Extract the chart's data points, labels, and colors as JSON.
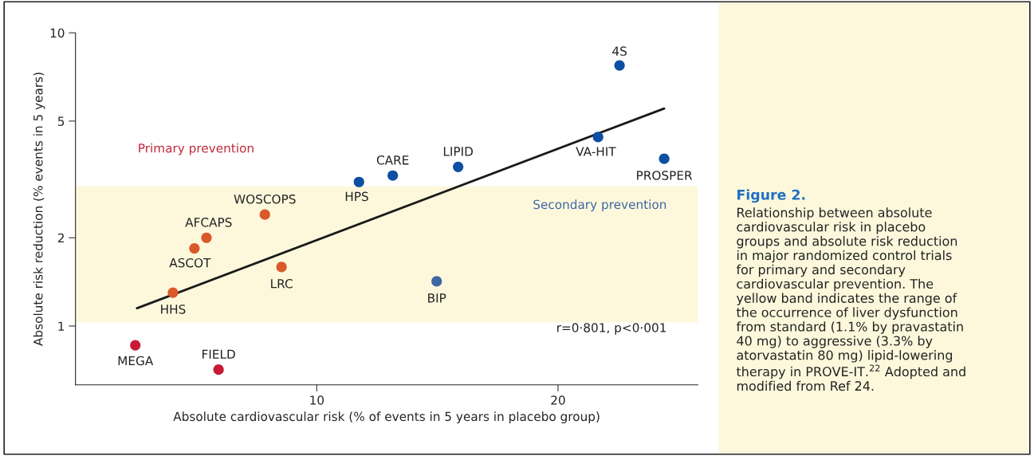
{
  "chart_data": {
    "type": "scatter",
    "xlabel": "Absolute cardiovascular risk (% of events in 5 years in placebo group)",
    "ylabel": "Absolute risk reduction (% events in 5 years)",
    "log": "y",
    "xlim": [
      0,
      25.8
    ],
    "ylim": [
      0.63,
      10
    ],
    "xticks": [
      10,
      20
    ],
    "yticks": [
      1,
      2,
      5,
      10
    ],
    "grid": false,
    "legend": false,
    "series": [
      {
        "marker": "circle",
        "x": [
          22.55,
          21.66,
          24.4,
          15.86,
          13.15,
          11.75,
          7.85,
          5.43,
          4.93,
          8.54,
          4.04,
          14.97,
          2.48,
          5.93
        ],
        "values": [
          7.74,
          4.41,
          3.72,
          3.49,
          3.26,
          3.1,
          2.4,
          2.0,
          1.84,
          1.59,
          1.3,
          1.42,
          0.86,
          0.71
        ],
        "colors": [
          "#0d4fa3",
          "#0d4fa3",
          "#0d4fa3",
          "#0d4fa3",
          "#0d4fa3",
          "#0d4fa3",
          "#d9592b",
          "#d9592b",
          "#d9592b",
          "#d9592b",
          "#d9592b",
          "#3d66a3",
          "#c81a35",
          "#c81a35"
        ]
      },
      {
        "type": "line",
        "color": "#1a1a1a",
        "x": [
          2.55,
          24.4
        ],
        "values": [
          1.15,
          5.52
        ]
      }
    ],
    "bands": [
      {
        "axis": "y",
        "from": 1.03,
        "to": 3.0,
        "color": "#fdf8dc"
      }
    ],
    "annotations": [
      {
        "text": "4S",
        "x": 22.55,
        "y": 7.74
      },
      {
        "text": "VA-HIT",
        "x": 21.66,
        "y": 4.41
      },
      {
        "text": "PROSPER",
        "x": 24.4,
        "y": 3.72
      },
      {
        "text": "LIPID",
        "x": 15.86,
        "y": 3.49
      },
      {
        "text": "CARE",
        "x": 13.15,
        "y": 3.26
      },
      {
        "text": "HPS",
        "x": 11.75,
        "y": 3.1
      },
      {
        "text": "WOSCOPS",
        "x": 7.85,
        "y": 2.4
      },
      {
        "text": "AFCAPS",
        "x": 5.43,
        "y": 2.0
      },
      {
        "text": "ASCOT",
        "x": 4.93,
        "y": 1.84
      },
      {
        "text": "LRC",
        "x": 8.54,
        "y": 1.59
      },
      {
        "text": "HHS",
        "x": 4.04,
        "y": 1.3
      },
      {
        "text": "BIP",
        "x": 14.97,
        "y": 1.42
      },
      {
        "text": "MEGA",
        "x": 2.48,
        "y": 0.86
      },
      {
        "text": "FIELD",
        "x": 5.93,
        "y": 0.71
      },
      "Primary prevention",
      "Secondary prevention",
      "r=0·801, p<0·001",
      "Figure 2.",
      "Relationship between absolute\ncardiovascular risk in placebo\ngroups and absolute risk reduction\nin major randomized control trials\nfor primary and secondary\ncardiovascular prevention. The\nyellow band indicates the range of\nthe occurrence of liver dysfunction\nfrom standard (1.1% by pravastatin\n40 mg) to aggressive (3.3% by\natorvastatin 80 mg) lipid-lowering\ntherapy in PROVE-IT.$^{22}$ Adopted and\nmodified from Ref 24."
    ]
  }
}
